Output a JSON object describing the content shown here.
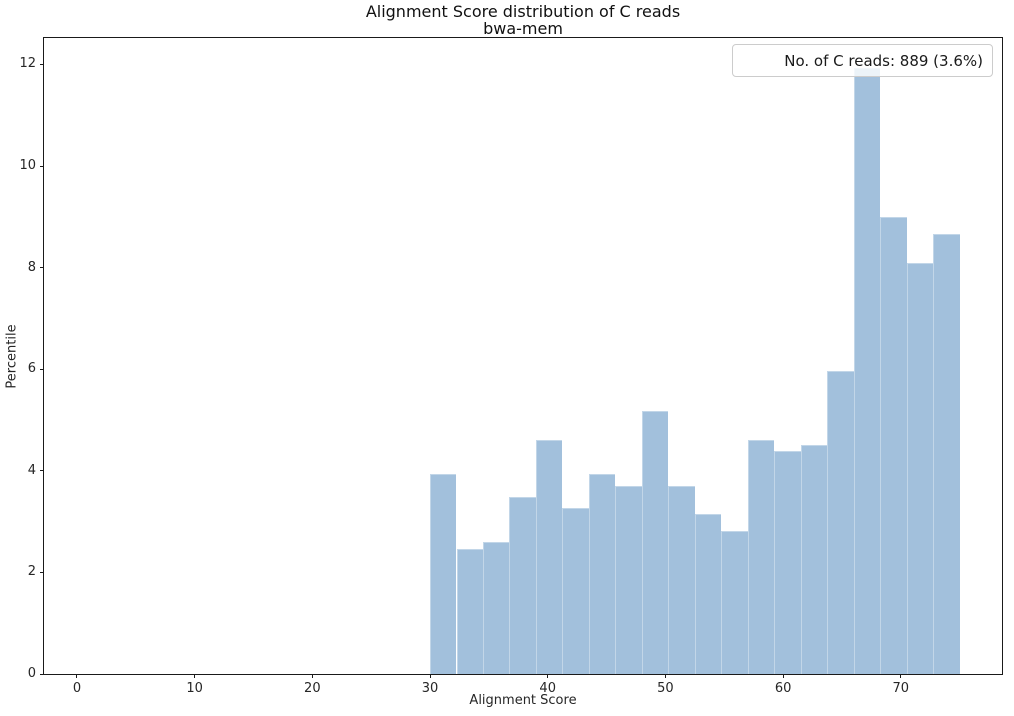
{
  "chart_data": {
    "type": "bar",
    "subtype": "histogram",
    "title": "Alignment Score distribution of C reads",
    "subtitle": "bwa-mem",
    "xlabel": "Alignment Score",
    "ylabel": "Percentile",
    "legend_label": "No. of C reads: 889 (3.6%)",
    "legend_position": "upper right",
    "grid": false,
    "bar_color": "#a2c0dc",
    "spine_color": "#1a1a1a",
    "xlim": [
      -2.8,
      78.6
    ],
    "ylim": [
      0,
      12.52
    ],
    "x_ticks": [
      0,
      10,
      20,
      30,
      40,
      50,
      60,
      70
    ],
    "y_ticks": [
      0,
      2,
      4,
      6,
      8,
      10,
      12
    ],
    "bin_edges": [
      30,
      32.25,
      34.5,
      36.75,
      39,
      41.25,
      43.5,
      45.75,
      48,
      50.25,
      52.5,
      54.75,
      57,
      59.25,
      61.5,
      63.75,
      66,
      68.25,
      70.5,
      72.75,
      75
    ],
    "values": [
      3.94,
      2.47,
      2.59,
      3.49,
      4.61,
      3.26,
      3.94,
      3.71,
      5.17,
      3.71,
      3.15,
      2.81,
      4.61,
      4.39,
      4.5,
      5.96,
      11.92,
      9.0,
      8.1,
      8.66
    ]
  }
}
